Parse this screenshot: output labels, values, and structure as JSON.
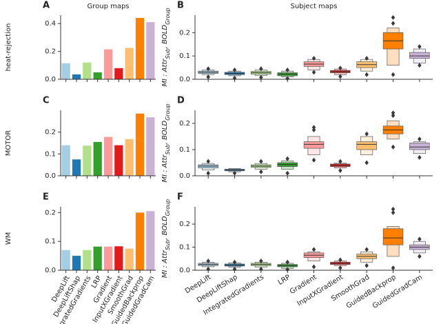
{
  "chart_data": [
    {
      "type": "bar",
      "panel": "A",
      "title": "Group maps",
      "row_label": "heat-rejection",
      "ylim": [
        0,
        0.46
      ],
      "yticks": [
        {
          "value": 0,
          "label": "0.0"
        },
        0.2,
        0.4
      ],
      "colors": [
        "#a6cee3",
        "#1f78b4",
        "#b2df8a",
        "#33a02c",
        "#fb9a99",
        "#e31a1c",
        "#fdbf6f",
        "#ff7f00",
        "#cab2d6"
      ],
      "values": [
        0.115,
        0.035,
        0.12,
        0.05,
        0.215,
        0.08,
        0.225,
        0.44,
        0.41
      ]
    },
    {
      "type": "boxen",
      "panel": "B",
      "title": "Subject maps",
      "ylabel": [
        "MI : Attr",
        "Sub",
        ", BOLD",
        "Group"
      ],
      "ylim": [
        0,
        0.275
      ],
      "yticks": [
        {
          "value": 0,
          "label": "0.0"
        },
        0.1,
        0.2
      ],
      "colors": [
        "#a6cee3",
        "#1f78b4",
        "#b2df8a",
        "#33a02c",
        "#fb9a99",
        "#e31a1c",
        "#fdbf6f",
        "#ff7f00",
        "#cab2d6"
      ],
      "values": [
        {
          "median": 0.03,
          "boxes": [
            [
              0.025,
              0.035
            ],
            [
              0.02,
              0.04
            ]
          ],
          "outliers": [
            0.01,
            0.045
          ]
        },
        {
          "median": 0.025,
          "boxes": [
            [
              0.02,
              0.03
            ],
            [
              0.015,
              0.035
            ]
          ],
          "outliers": [
            0.005,
            0.04
          ]
        },
        {
          "median": 0.028,
          "boxes": [
            [
              0.022,
              0.034
            ],
            [
              0.016,
              0.04
            ]
          ],
          "outliers": [
            0.008,
            0.045
          ]
        },
        {
          "median": 0.022,
          "boxes": [
            [
              0.015,
              0.028
            ],
            [
              0.01,
              0.035
            ]
          ],
          "outliers": [
            0.003,
            0.04
          ]
        },
        {
          "median": 0.065,
          "boxes": [
            [
              0.055,
              0.075
            ],
            [
              0.04,
              0.085
            ]
          ],
          "outliers": [
            0.03,
            0.09
          ]
        },
        {
          "median": 0.033,
          "boxes": [
            [
              0.028,
              0.038
            ],
            [
              0.02,
              0.044
            ]
          ],
          "outliers": [
            0.012,
            0.048
          ]
        },
        {
          "median": 0.063,
          "boxes": [
            [
              0.05,
              0.075
            ],
            [
              0.035,
              0.085
            ]
          ],
          "outliers": [
            0.02,
            0.09
          ]
        },
        {
          "median": 0.165,
          "boxes": [
            [
              0.13,
              0.2
            ],
            [
              0.06,
              0.22
            ]
          ],
          "outliers": [
            0.02,
            0.24,
            0.265
          ]
        },
        {
          "median": 0.1,
          "boxes": [
            [
              0.09,
              0.115
            ],
            [
              0.07,
              0.13
            ]
          ],
          "outliers": [
            0.06,
            0.14
          ]
        }
      ]
    },
    {
      "type": "bar",
      "panel": "C",
      "row_label": "MOTOR",
      "ylim": [
        0,
        0.3
      ],
      "yticks": [
        {
          "value": 0,
          "label": "0.0"
        },
        0.1,
        0.2
      ],
      "colors": [
        "#a6cee3",
        "#1f78b4",
        "#b2df8a",
        "#33a02c",
        "#fb9a99",
        "#e31a1c",
        "#fdbf6f",
        "#ff7f00",
        "#cab2d6"
      ],
      "values": [
        0.14,
        0.075,
        0.138,
        0.155,
        0.178,
        0.14,
        0.168,
        0.285,
        0.268
      ]
    },
    {
      "type": "boxen",
      "panel": "D",
      "ylabel": [
        "MI : Attr",
        "Sub",
        ", BOLD",
        "Group"
      ],
      "ylim": [
        0,
        0.25
      ],
      "yticks": [
        {
          "value": 0,
          "label": "0.0"
        },
        0.1,
        0.2
      ],
      "colors": [
        "#a6cee3",
        "#1f78b4",
        "#b2df8a",
        "#33a02c",
        "#fb9a99",
        "#e31a1c",
        "#fdbf6f",
        "#ff7f00",
        "#cab2d6"
      ],
      "values": [
        {
          "median": 0.037,
          "boxes": [
            [
              0.03,
              0.042
            ],
            [
              0.022,
              0.047
            ]
          ],
          "outliers": [
            0.01,
            0.055
          ]
        },
        {
          "median": 0.022,
          "boxes": [
            [
              0.019,
              0.025
            ],
            [
              0.015,
              0.028
            ]
          ],
          "outliers": [
            0.01
          ]
        },
        {
          "median": 0.037,
          "boxes": [
            [
              0.032,
              0.042
            ],
            [
              0.025,
              0.047
            ]
          ],
          "outliers": [
            0.015,
            0.055
          ]
        },
        {
          "median": 0.043,
          "boxes": [
            [
              0.035,
              0.05
            ],
            [
              0.025,
              0.057
            ]
          ],
          "outliers": [
            0.01,
            0.065
          ]
        },
        {
          "median": 0.12,
          "boxes": [
            [
              0.105,
              0.13
            ],
            [
              0.08,
              0.15
            ]
          ],
          "outliers": [
            0.06,
            0.175,
            0.185
          ]
        },
        {
          "median": 0.04,
          "boxes": [
            [
              0.035,
              0.045
            ],
            [
              0.03,
              0.048
            ]
          ],
          "outliers": [
            0.02,
            0.055
          ]
        },
        {
          "median": 0.12,
          "boxes": [
            [
              0.1,
              0.13
            ],
            [
              0.08,
              0.15
            ]
          ],
          "outliers": [
            0.05,
            0.16
          ]
        },
        {
          "median": 0.175,
          "boxes": [
            [
              0.16,
              0.19
            ],
            [
              0.14,
              0.21
            ]
          ],
          "outliers": [
            0.11,
            0.23,
            0.24
          ]
        },
        {
          "median": 0.11,
          "boxes": [
            [
              0.1,
              0.125
            ],
            [
              0.085,
              0.13
            ]
          ],
          "outliers": [
            0.07,
            0.14
          ]
        }
      ]
    },
    {
      "type": "bar",
      "panel": "E",
      "row_label": "WM",
      "ylim": [
        0,
        0.22
      ],
      "yticks": [
        {
          "value": 0,
          "label": "0.0"
        },
        0.1,
        0.2
      ],
      "colors": [
        "#a6cee3",
        "#1f78b4",
        "#b2df8a",
        "#33a02c",
        "#fb9a99",
        "#e31a1c",
        "#fdbf6f",
        "#ff7f00",
        "#cab2d6"
      ],
      "categories": [
        "DeepLift",
        "DeepLiftShap",
        "IntegratedGradients",
        "LRP",
        "Gradient",
        "InputXGradient",
        "SmoothGrad",
        "GuidedBackprop",
        "GuidedGradCam"
      ],
      "values": [
        0.07,
        0.05,
        0.07,
        0.082,
        0.082,
        0.083,
        0.075,
        0.2,
        0.205
      ]
    },
    {
      "type": "boxen",
      "panel": "F",
      "ylabel": [
        "MI : Attr",
        "Sub",
        ", BOLD",
        "Group"
      ],
      "ylim": [
        0,
        0.275
      ],
      "yticks": [
        {
          "value": 0,
          "label": "0.0"
        },
        0.1,
        0.2
      ],
      "colors": [
        "#a6cee3",
        "#1f78b4",
        "#b2df8a",
        "#33a02c",
        "#fb9a99",
        "#e31a1c",
        "#fdbf6f",
        "#ff7f00",
        "#cab2d6"
      ],
      "categories": [
        "DeepLift",
        "DeepLiftShap",
        "IntegratedGradients",
        "LRP",
        "Gradient",
        "InputXGradient",
        "SmoothGrad",
        "GuidedBackprop",
        "GuidedGradCam"
      ],
      "values": [
        {
          "median": 0.025,
          "boxes": [
            [
              0.02,
              0.03
            ],
            [
              0.015,
              0.035
            ]
          ],
          "outliers": [
            0.005,
            0.04
          ]
        },
        {
          "median": 0.022,
          "boxes": [
            [
              0.018,
              0.027
            ],
            [
              0.013,
              0.032
            ]
          ],
          "outliers": [
            0.005,
            0.035
          ]
        },
        {
          "median": 0.025,
          "boxes": [
            [
              0.02,
              0.03
            ],
            [
              0.014,
              0.035
            ]
          ],
          "outliers": [
            0.005,
            0.04
          ]
        },
        {
          "median": 0.02,
          "boxes": [
            [
              0.015,
              0.025
            ],
            [
              0.008,
              0.03
            ]
          ],
          "outliers": [
            0.003,
            0.035
          ]
        },
        {
          "median": 0.065,
          "boxes": [
            [
              0.055,
              0.075
            ],
            [
              0.04,
              0.08
            ]
          ],
          "outliers": [
            0.015,
            0.09
          ]
        },
        {
          "median": 0.03,
          "boxes": [
            [
              0.025,
              0.035
            ],
            [
              0.02,
              0.04
            ]
          ],
          "outliers": [
            0.01,
            0.045
          ]
        },
        {
          "median": 0.06,
          "boxes": [
            [
              0.05,
              0.07
            ],
            [
              0.035,
              0.08
            ]
          ],
          "outliers": [
            0.02,
            0.09
          ]
        },
        {
          "median": 0.14,
          "boxes": [
            [
              0.11,
              0.18
            ],
            [
              0.06,
              0.19
            ]
          ],
          "outliers": [
            0.01,
            0.25,
            0.265
          ]
        },
        {
          "median": 0.1,
          "boxes": [
            [
              0.09,
              0.11
            ],
            [
              0.075,
              0.125
            ]
          ],
          "outliers": [
            0.06,
            0.135
          ]
        }
      ]
    }
  ]
}
